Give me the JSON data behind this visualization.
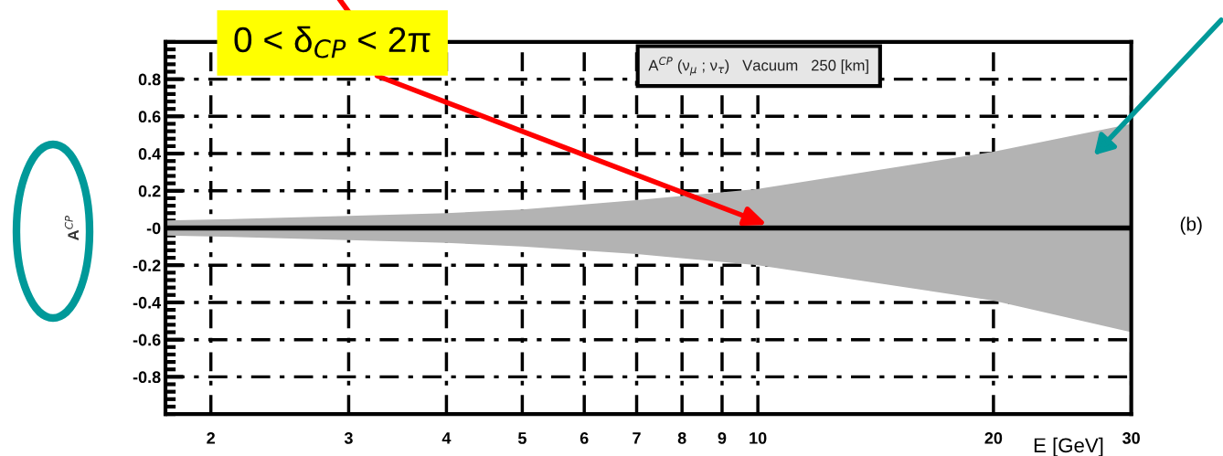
{
  "chart_data": {
    "type": "line",
    "title": "A$^{CP}$ (ν$_{μ}$ ; ν$_{τ}$)   Vacuum   250 [km]",
    "xlabel": "E [GeV]",
    "ylabel": "A$^{CP}$",
    "x": [
      1.75,
      2,
      3,
      4,
      5,
      7,
      10,
      20,
      30
    ],
    "series": [
      {
        "color": "#000000",
        "values": [
          0,
          0,
          0,
          0,
          0,
          0,
          0,
          0,
          0
        ],
        "lower": [
          -0.04,
          -0.045,
          -0.065,
          -0.08,
          -0.1,
          -0.14,
          -0.2,
          -0.39,
          -0.56
        ],
        "upper": [
          0.04,
          0.045,
          0.065,
          0.08,
          0.1,
          0.15,
          0.21,
          0.41,
          0.56
        ]
      }
    ],
    "log": "x",
    "xlim": [
      1.75,
      30
    ],
    "xticks": [
      2,
      3,
      4,
      5,
      6,
      7,
      8,
      9,
      10,
      20,
      30
    ],
    "ylim": [
      -1,
      1
    ],
    "yticks": [
      {
        "value": -0.8,
        "label": "-0.8"
      },
      {
        "value": -0.6,
        "label": "-0.6"
      },
      {
        "value": -0.4,
        "label": "-0.4"
      },
      {
        "value": -0.2,
        "label": "-0.2"
      },
      {
        "value": 0,
        "label": "-0"
      },
      0.2,
      0.4,
      0.6,
      0.8
    ],
    "grid": true,
    "annotations": [
      "0 < δ$_{CP}$ < 2π",
      "(b)"
    ]
  }
}
